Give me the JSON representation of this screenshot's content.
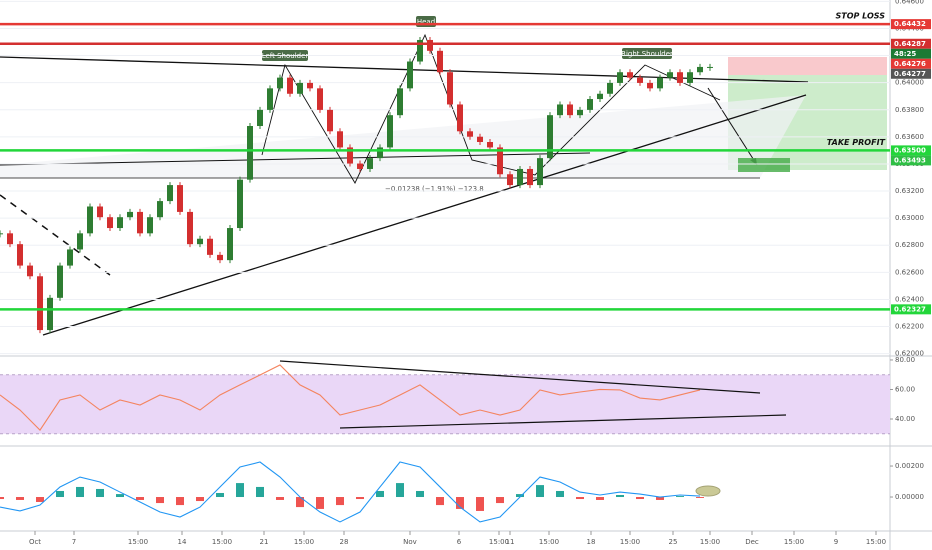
{
  "chart_data": [
    {
      "type": "candlestick",
      "x": [
        0,
        1,
        2,
        3,
        4,
        5,
        6,
        7,
        8,
        9,
        10,
        11,
        12,
        13,
        14,
        15,
        16,
        17,
        18,
        19,
        20,
        21,
        22,
        23,
        24,
        25,
        26,
        27,
        28,
        29,
        30,
        31,
        32,
        33,
        34,
        35,
        36,
        37,
        38,
        39,
        40,
        41,
        42,
        43,
        44,
        45,
        46,
        47,
        48,
        49,
        50,
        51,
        52,
        53,
        54,
        55,
        56,
        57,
        58,
        59,
        60,
        61,
        62,
        63,
        64,
        65,
        66,
        67,
        68,
        69,
        70,
        71
      ],
      "values": [
        0.62888,
        0.62808,
        0.6265,
        0.62571,
        0.62174,
        0.62412,
        0.6265,
        0.62769,
        0.62888,
        0.63086,
        0.63007,
        0.62927,
        0.63007,
        0.63046,
        0.62888,
        0.63007,
        0.63126,
        0.63244,
        0.63046,
        0.62808,
        0.62848,
        0.62729,
        0.6269,
        0.62927,
        0.63284,
        0.6368,
        0.63799,
        0.63958,
        0.64037,
        0.63918,
        0.63998,
        0.63958,
        0.63799,
        0.63641,
        0.63522,
        0.63403,
        0.63363,
        0.63443,
        0.63522,
        0.6376,
        0.63958,
        0.64156,
        0.64315,
        0.64235,
        0.64077,
        0.63839,
        0.63641,
        0.63601,
        0.63562,
        0.63522,
        0.63324,
        0.63244,
        0.63363,
        0.63244,
        0.63443,
        0.6376,
        0.63839,
        0.6376,
        0.63799,
        0.63879,
        0.63918,
        0.63998,
        0.64077,
        0.64037,
        0.63998,
        0.63958,
        0.64037,
        0.64077,
        0.63998,
        0.64077,
        0.64116,
        0.64116
      ],
      "up_color": "#2e7d32",
      "down_color": "#d32f2f",
      "xlim": [
        0,
        89
      ],
      "ylim": [
        0.6199,
        0.6461
      ],
      "yticks": [
        {
          "value": 0.62,
          "label": "0.62000"
        },
        {
          "value": 0.622,
          "label": "0.62200"
        },
        {
          "value": 0.624,
          "label": "0.62400"
        },
        {
          "value": 0.626,
          "label": "0.62600"
        },
        {
          "value": 0.628,
          "label": "0.62800"
        },
        {
          "value": 0.63,
          "label": "0.63000"
        },
        {
          "value": 0.632,
          "label": "0.63200"
        },
        {
          "value": 0.634,
          "label": "0.63400"
        },
        {
          "value": 0.636,
          "label": "0.63600"
        },
        {
          "value": 0.638,
          "label": "0.63800"
        },
        {
          "value": 0.64,
          "label": "0.64000"
        },
        {
          "value": 0.642,
          "label": "0.64200"
        },
        {
          "value": 0.644,
          "label": "0.64400"
        },
        {
          "value": 0.646,
          "label": "0.64600"
        }
      ],
      "grid": true,
      "levels": [
        {
          "name": "STOP LOSS",
          "value": 0.64432,
          "color": "#e53935",
          "line": true
        },
        {
          "value": 0.64287,
          "color": "#d32f2f",
          "line": true
        },
        {
          "tag": "48:25",
          "color": "#1b7a34"
        },
        {
          "value": 0.64276,
          "color": "#e53935",
          "line": false
        },
        {
          "value": 0.64277,
          "color": "#555555",
          "line": false
        },
        {
          "name": "TAKE PROFIT",
          "value": 0.635,
          "value_label": "0.63500",
          "color": "#22d63a",
          "line": true
        },
        {
          "value": 0.63493,
          "color": "#2fbf45",
          "line": false
        },
        {
          "value": 0.62327,
          "color": "#22d63a",
          "line": true
        }
      ],
      "annotations": [
        "Left Shoulder",
        "Head",
        "Right Shoulder",
        "−0.01238 (−1.91%)  −123.8"
      ]
    },
    {
      "type": "line",
      "x": [
        0,
        2,
        4,
        6,
        8,
        10,
        12,
        14,
        16,
        18,
        20,
        22,
        24,
        26,
        28,
        30,
        32,
        34,
        36,
        38,
        40,
        42,
        44,
        46,
        48,
        50,
        52,
        54,
        56,
        58,
        60,
        62,
        64,
        66,
        68,
        70
      ],
      "values": [
        56.3,
        46.1,
        32.5,
        52.9,
        56.3,
        46.1,
        52.9,
        49.5,
        56.3,
        52.9,
        46.1,
        56.3,
        63.1,
        69.8,
        76.6,
        63.1,
        56.3,
        42.7,
        46.1,
        49.5,
        56.3,
        63.1,
        52.9,
        42.7,
        46.1,
        42.7,
        46.1,
        59.7,
        56.3,
        58.3,
        60.0,
        59.7,
        54.2,
        52.9,
        56.3,
        59.7
      ],
      "color": "#f4845f",
      "band": [
        30,
        70
      ],
      "band_color": "#ead7f7",
      "xlim": [
        0,
        89
      ],
      "ylim": [
        22.4,
        82
      ],
      "yticks": [
        {
          "value": 80,
          "label": "80.00"
        },
        {
          "value": 60,
          "label": "60.00"
        },
        {
          "value": 40,
          "label": "40.00"
        }
      ]
    },
    {
      "type": "combo",
      "x": [
        0,
        2,
        4,
        6,
        8,
        10,
        12,
        14,
        16,
        18,
        20,
        22,
        24,
        26,
        28,
        30,
        32,
        34,
        36,
        38,
        40,
        42,
        44,
        46,
        48,
        50,
        52,
        54,
        56,
        58,
        60,
        62,
        64,
        66,
        68,
        70
      ],
      "series": [
        {
          "type": "bar",
          "up_color": "#26a69a",
          "down_color": "#ef5350",
          "values": [
            -0.00013,
            -0.00019,
            -0.00032,
            0.00039,
            0.00065,
            0.00052,
            0.00019,
            -0.00019,
            -0.00039,
            -0.00052,
            -0.00026,
            0.00026,
            0.0009,
            0.00065,
            -0.00019,
            -0.00065,
            -0.00077,
            -0.00052,
            -0.00013,
            0.00039,
            0.0009,
            0.00039,
            -0.00052,
            -0.00077,
            -0.0009,
            -0.00039,
            0.00019,
            0.00077,
            0.00039,
            -0.00013,
            -0.00019,
            0.00013,
            -0.00013,
            -0.00019,
            6e-05,
            -6e-05
          ]
        },
        {
          "type": "line",
          "color": "#2196f3",
          "values": [
            -0.00065,
            -0.0009,
            -0.00052,
            0.00065,
            0.00129,
            0.00097,
            0.00032,
            -0.00032,
            -0.00097,
            -0.00129,
            -0.00065,
            0.00065,
            0.00194,
            0.00226,
            0.00129,
            0,
            -0.00097,
            -0.00161,
            -0.00097,
            0.00065,
            0.00226,
            0.00194,
            0.00065,
            -0.00065,
            -0.00161,
            -0.00129,
            0,
            0.00129,
            0.00097,
            0.00032,
            0.00013,
            0.00032,
            0.00019,
            0,
            0.00013,
            6e-05
          ]
        }
      ],
      "xlim": [
        0,
        89
      ],
      "ylim": [
        -0.00213,
        0.00323
      ],
      "yticks": [
        {
          "value": 0.002,
          "label": "0.00200"
        },
        {
          "value": 0,
          "label": "0.00000"
        }
      ],
      "xticks": [
        {
          "value": 3.5,
          "label": "Oct"
        },
        {
          "value": 7.4,
          "label": "7"
        },
        {
          "value": 13.8,
          "label": "15:00"
        },
        {
          "value": 18.2,
          "label": "14"
        },
        {
          "value": 22.2,
          "label": "15:00"
        },
        {
          "value": 26.4,
          "label": "21"
        },
        {
          "value": 30.4,
          "label": "15:00"
        },
        {
          "value": 34.4,
          "label": "28"
        },
        {
          "value": 41,
          "label": "Nov"
        },
        {
          "value": 45.9,
          "label": "6"
        },
        {
          "value": 49.9,
          "label": "15:00"
        },
        {
          "value": 51,
          "label": "11"
        },
        {
          "value": 54.9,
          "label": "15:00"
        },
        {
          "value": 59.1,
          "label": "18"
        },
        {
          "value": 63,
          "label": "15:00"
        },
        {
          "value": 67.3,
          "label": "25"
        },
        {
          "value": 71,
          "label": "15:00"
        },
        {
          "value": 75.2,
          "label": "Dec"
        },
        {
          "value": 79.4,
          "label": "15:00"
        },
        {
          "value": 83.6,
          "label": "9"
        },
        {
          "value": 87.6,
          "label": "15:00"
        }
      ]
    }
  ]
}
